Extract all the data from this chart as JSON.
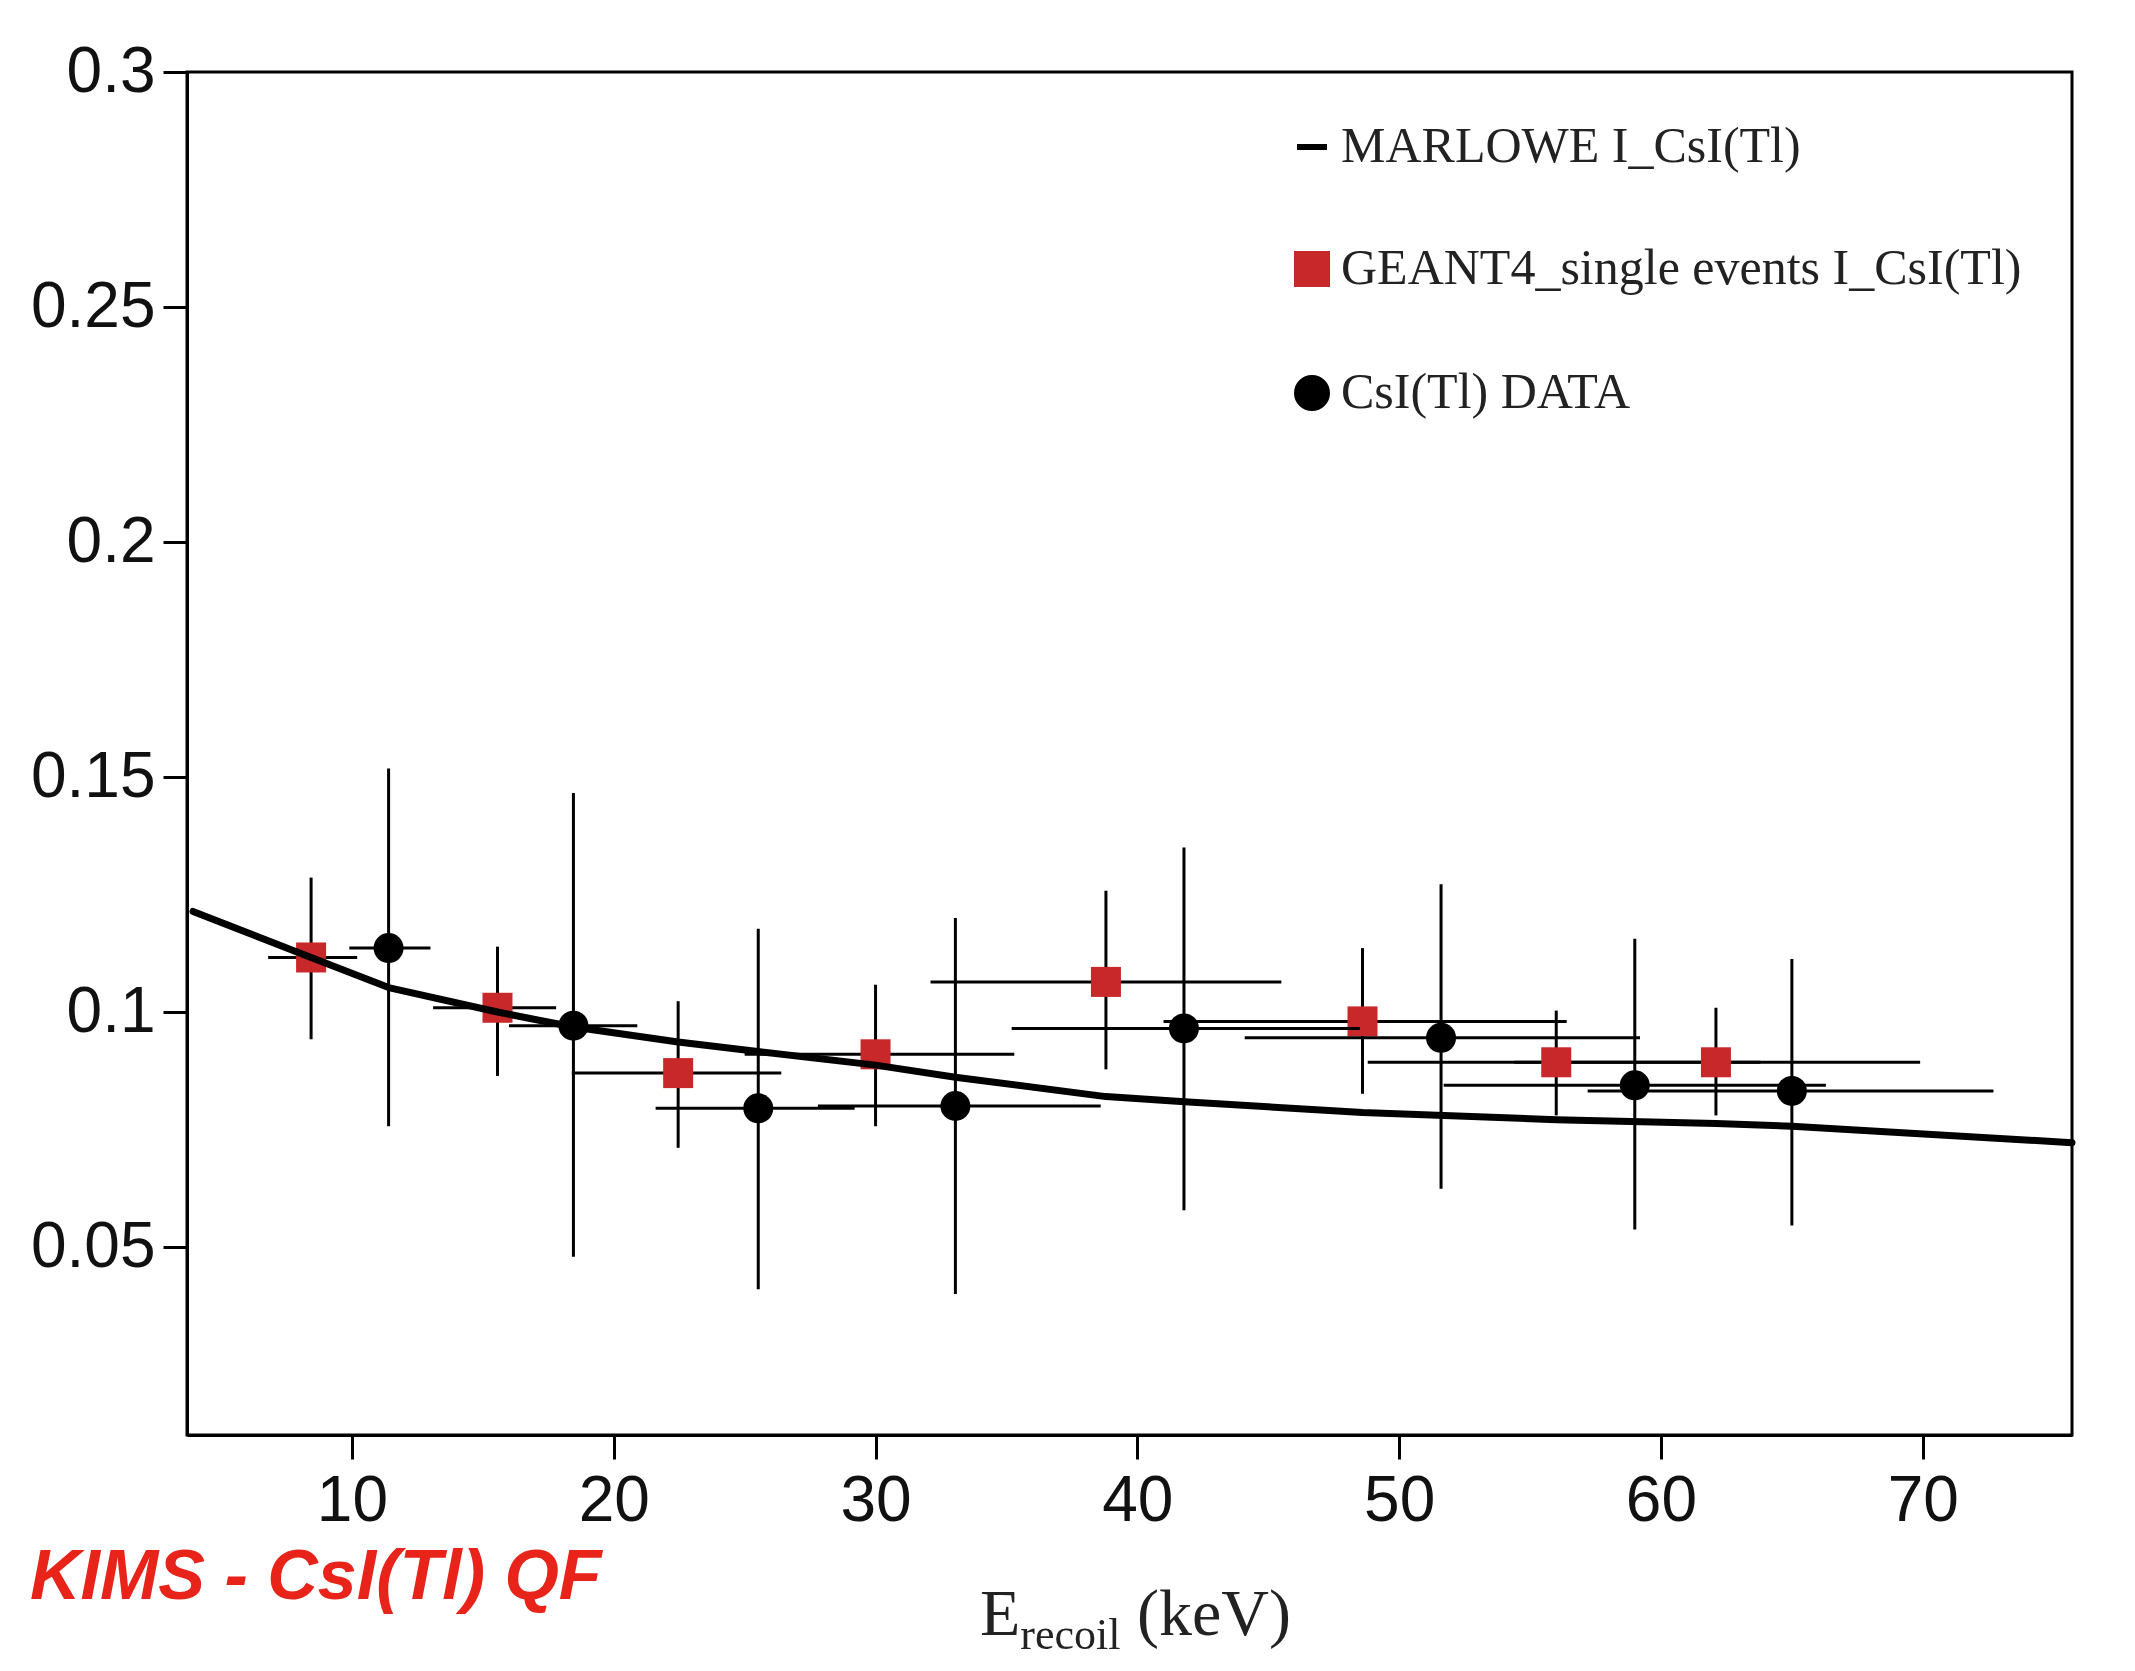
{
  "chart_data": {
    "type": "scatter",
    "xlabel": "E$_{recoil}$ (keV)",
    "annotations": [
      "KIMS - CsI(Tl) QF"
    ],
    "xlim": [
      3.7,
      75.7
    ],
    "xticks": [
      10,
      20,
      30,
      40,
      50,
      60,
      70
    ],
    "ylim": [
      0.01,
      0.3
    ],
    "yticks": [
      0.05,
      0.1,
      0.15,
      0.2,
      0.25,
      0.3
    ],
    "legend": "top right",
    "series": [
      {
        "name": "MARLOWE I_CsI(Tl)",
        "type": "line",
        "color": "#000000",
        "line_style": "solid",
        "x": [
          3.93,
          8.44,
          11.4,
          15.56,
          18.46,
          22.46,
          25.5,
          30,
          33.05,
          38.8,
          41.8,
          48.6,
          56,
          62.1,
          65,
          75.7
        ],
        "values": [
          0.1214,
          0.1116,
          0.1052,
          0.1,
          0.0968,
          0.0936,
          0.0916,
          0.0887,
          0.0861,
          0.082,
          0.0809,
          0.0786,
          0.0771,
          0.0763,
          0.0757,
          0.0722
        ]
      },
      {
        "name": "GEANT4_single events I_CsI(Tl)",
        "type": "scatter",
        "marker": "square",
        "color": "#c8282a",
        "x": [
          8.44,
          15.56,
          22.46,
          30.0,
          38.8,
          48.6,
          56.0,
          62.1
        ],
        "values": [
          0.1116,
          0.1009,
          0.087,
          0.091,
          0.1064,
          0.098,
          0.0893,
          0.0893
        ],
        "errors": [
          [
            0.0942,
            0.1286
          ],
          [
            0.0864,
            0.1139
          ],
          [
            0.0711,
            0.1023
          ],
          [
            0.0757,
            0.1058
          ],
          [
            0.0878,
            0.1258
          ],
          [
            0.0826,
            0.1136
          ],
          [
            0.078,
            0.1003
          ],
          [
            0.078,
            0.1009
          ]
        ],
        "xerrors": [
          [
            6.8,
            10.2
          ],
          [
            13.1,
            17.8
          ],
          [
            18.4,
            26.4
          ],
          [
            25.0,
            35.3
          ],
          [
            32.1,
            45.5
          ],
          [
            41.0,
            56.4
          ],
          [
            48.8,
            63.8
          ],
          [
            54.4,
            69.9
          ]
        ]
      },
      {
        "name": "CsI(Tl) DATA",
        "type": "scatter",
        "marker": "circle",
        "color": "#000000",
        "x": [
          11.4,
          18.46,
          25.52,
          33.05,
          41.78,
          51.6,
          59.0,
          65.0
        ],
        "values": [
          0.1136,
          0.0971,
          0.0795,
          0.08,
          0.0965,
          0.0945,
          0.0844,
          0.0832
        ],
        "errors": [
          [
            0.0757,
            0.1518
          ],
          [
            0.0479,
            0.1466
          ],
          [
            0.041,
            0.1177
          ],
          [
            0.04,
            0.12
          ],
          [
            0.0578,
            0.135
          ],
          [
            0.0624,
            0.1272
          ],
          [
            0.0537,
            0.1156
          ],
          [
            0.0546,
            0.1113
          ]
        ],
        "xerrors": [
          [
            9.9,
            13.0
          ],
          [
            16.0,
            20.9
          ],
          [
            21.6,
            29.2
          ],
          [
            27.8,
            38.6
          ],
          [
            35.2,
            48.5
          ],
          [
            44.1,
            59.2
          ],
          [
            51.7,
            66.3
          ],
          [
            57.2,
            72.7
          ]
        ]
      }
    ]
  }
}
